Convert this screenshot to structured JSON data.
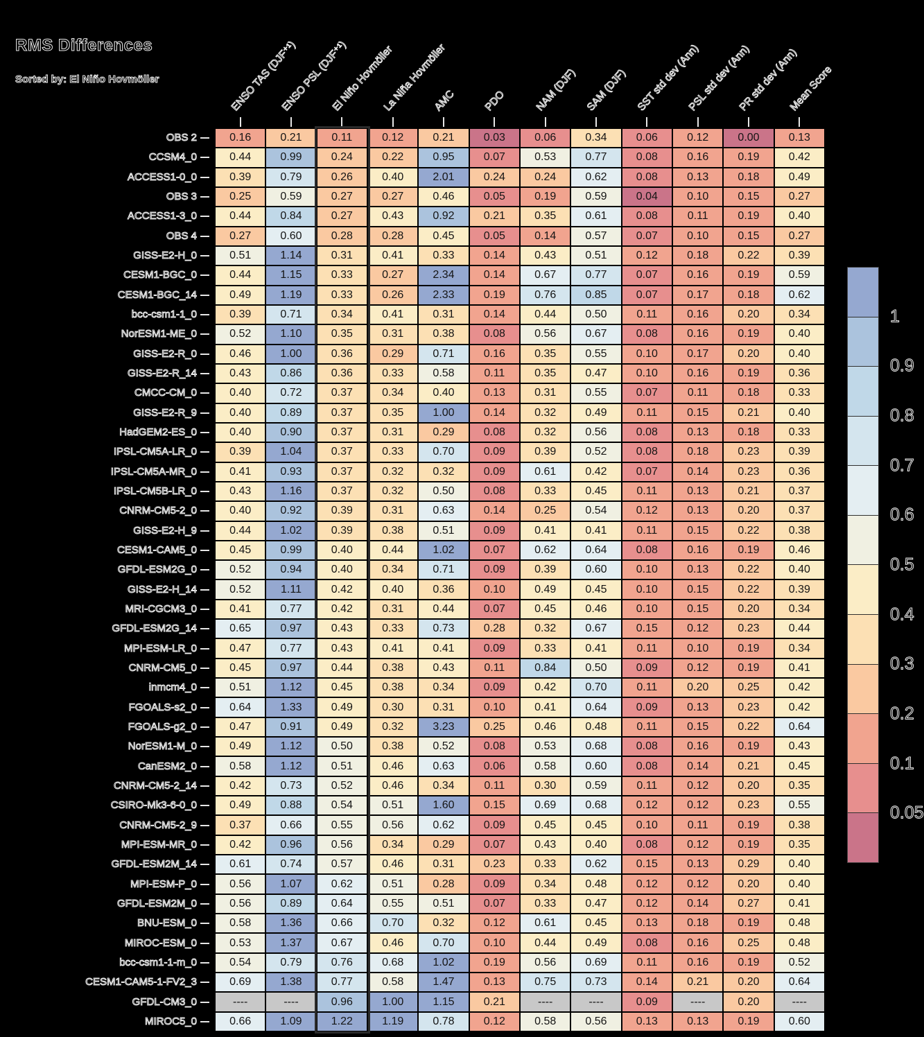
{
  "title": "RMS Differences",
  "subtitle": "Sorted by: El Niño Hovmöller",
  "chart_data": {
    "type": "heatmap",
    "title": "RMS Differences",
    "sorted_by": "El Niño Hovmöller",
    "highlighted_column_index": 2,
    "missing_token": "----",
    "columns": [
      "ENSO TAS (DJF⁺¹)",
      "ENSO PSL (DJF⁺¹)",
      "El Niño Hovmöller",
      "La Niña Hovmöller",
      "AMC",
      "PDO",
      "NAM (DJF)",
      "SAM (DJF)",
      "SST std dev (Ann)",
      "PSL std dev (Ann)",
      "PR std dev (Ann)",
      "Mean Score"
    ],
    "rows": [
      "OBS 2",
      "CCSM4_0",
      "ACCESS1-0_0",
      "OBS 3",
      "ACCESS1-3_0",
      "OBS 4",
      "GISS-E2-H_0",
      "CESM1-BGC_0",
      "CESM1-BGC_14",
      "bcc-csm1-1_0",
      "NorESM1-ME_0",
      "GISS-E2-R_0",
      "GISS-E2-R_14",
      "CMCC-CM_0",
      "GISS-E2-R_9",
      "HadGEM2-ES_0",
      "IPSL-CM5A-LR_0",
      "IPSL-CM5A-MR_0",
      "IPSL-CM5B-LR_0",
      "CNRM-CM5-2_0",
      "GISS-E2-H_9",
      "CESM1-CAM5_0",
      "GFDL-ESM2G_0",
      "GISS-E2-H_14",
      "MRI-CGCM3_0",
      "GFDL-ESM2G_14",
      "MPI-ESM-LR_0",
      "CNRM-CM5_0",
      "inmcm4_0",
      "FGOALS-s2_0",
      "FGOALS-g2_0",
      "NorESM1-M_0",
      "CanESM2_0",
      "CNRM-CM5-2_14",
      "CSIRO-Mk3-6-0_0",
      "CNRM-CM5-2_9",
      "MPI-ESM-MR_0",
      "GFDL-ESM2M_14",
      "MPI-ESM-P_0",
      "GFDL-ESM2M_0",
      "BNU-ESM_0",
      "MIROC-ESM_0",
      "bcc-csm1-1-m_0",
      "CESM1-CAM5-1-FV2_3",
      "GFDL-CM3_0",
      "MIROC5_0"
    ],
    "values": [
      [
        "0.16",
        "0.21",
        "0.11",
        "0.12",
        "0.21",
        "0.03",
        "0.06",
        "0.34",
        "0.06",
        "0.12",
        "0.00",
        "0.13"
      ],
      [
        "0.44",
        "0.99",
        "0.24",
        "0.22",
        "0.95",
        "0.07",
        "0.53",
        "0.77",
        "0.08",
        "0.16",
        "0.19",
        "0.42"
      ],
      [
        "0.39",
        "0.79",
        "0.26",
        "0.40",
        "2.01",
        "0.24",
        "0.24",
        "0.62",
        "0.08",
        "0.13",
        "0.18",
        "0.49"
      ],
      [
        "0.25",
        "0.59",
        "0.27",
        "0.27",
        "0.46",
        "0.05",
        "0.19",
        "0.59",
        "0.04",
        "0.10",
        "0.15",
        "0.27"
      ],
      [
        "0.44",
        "0.84",
        "0.27",
        "0.43",
        "0.92",
        "0.21",
        "0.35",
        "0.61",
        "0.08",
        "0.11",
        "0.19",
        "0.40"
      ],
      [
        "0.27",
        "0.60",
        "0.28",
        "0.28",
        "0.45",
        "0.05",
        "0.14",
        "0.57",
        "0.07",
        "0.10",
        "0.15",
        "0.27"
      ],
      [
        "0.51",
        "1.14",
        "0.31",
        "0.41",
        "0.33",
        "0.14",
        "0.43",
        "0.51",
        "0.12",
        "0.18",
        "0.22",
        "0.39"
      ],
      [
        "0.44",
        "1.15",
        "0.33",
        "0.27",
        "2.34",
        "0.14",
        "0.67",
        "0.77",
        "0.07",
        "0.16",
        "0.19",
        "0.59"
      ],
      [
        "0.49",
        "1.19",
        "0.33",
        "0.26",
        "2.33",
        "0.19",
        "0.76",
        "0.85",
        "0.07",
        "0.17",
        "0.18",
        "0.62"
      ],
      [
        "0.39",
        "0.71",
        "0.34",
        "0.41",
        "0.31",
        "0.14",
        "0.44",
        "0.50",
        "0.11",
        "0.16",
        "0.20",
        "0.34"
      ],
      [
        "0.52",
        "1.10",
        "0.35",
        "0.31",
        "0.38",
        "0.08",
        "0.56",
        "0.67",
        "0.08",
        "0.16",
        "0.19",
        "0.40"
      ],
      [
        "0.46",
        "1.00",
        "0.36",
        "0.29",
        "0.71",
        "0.16",
        "0.35",
        "0.55",
        "0.10",
        "0.17",
        "0.20",
        "0.40"
      ],
      [
        "0.43",
        "0.86",
        "0.36",
        "0.33",
        "0.58",
        "0.11",
        "0.35",
        "0.47",
        "0.10",
        "0.16",
        "0.19",
        "0.36"
      ],
      [
        "0.40",
        "0.72",
        "0.37",
        "0.34",
        "0.40",
        "0.13",
        "0.31",
        "0.55",
        "0.07",
        "0.11",
        "0.18",
        "0.33"
      ],
      [
        "0.40",
        "0.89",
        "0.37",
        "0.35",
        "1.00",
        "0.14",
        "0.32",
        "0.49",
        "0.11",
        "0.15",
        "0.21",
        "0.40"
      ],
      [
        "0.40",
        "0.90",
        "0.37",
        "0.31",
        "0.29",
        "0.08",
        "0.32",
        "0.56",
        "0.08",
        "0.13",
        "0.18",
        "0.33"
      ],
      [
        "0.39",
        "1.04",
        "0.37",
        "0.33",
        "0.70",
        "0.09",
        "0.39",
        "0.52",
        "0.08",
        "0.18",
        "0.23",
        "0.39"
      ],
      [
        "0.41",
        "0.93",
        "0.37",
        "0.32",
        "0.32",
        "0.09",
        "0.61",
        "0.42",
        "0.07",
        "0.14",
        "0.23",
        "0.36"
      ],
      [
        "0.43",
        "1.16",
        "0.37",
        "0.32",
        "0.50",
        "0.08",
        "0.33",
        "0.45",
        "0.11",
        "0.13",
        "0.21",
        "0.37"
      ],
      [
        "0.40",
        "0.92",
        "0.39",
        "0.31",
        "0.63",
        "0.14",
        "0.25",
        "0.54",
        "0.12",
        "0.13",
        "0.20",
        "0.37"
      ],
      [
        "0.44",
        "1.02",
        "0.39",
        "0.38",
        "0.51",
        "0.09",
        "0.41",
        "0.41",
        "0.11",
        "0.15",
        "0.22",
        "0.38"
      ],
      [
        "0.45",
        "0.99",
        "0.40",
        "0.44",
        "1.02",
        "0.07",
        "0.62",
        "0.64",
        "0.08",
        "0.16",
        "0.19",
        "0.46"
      ],
      [
        "0.52",
        "0.94",
        "0.40",
        "0.34",
        "0.71",
        "0.09",
        "0.39",
        "0.60",
        "0.10",
        "0.13",
        "0.22",
        "0.40"
      ],
      [
        "0.52",
        "1.11",
        "0.42",
        "0.40",
        "0.36",
        "0.10",
        "0.49",
        "0.45",
        "0.10",
        "0.15",
        "0.22",
        "0.39"
      ],
      [
        "0.41",
        "0.77",
        "0.42",
        "0.31",
        "0.44",
        "0.07",
        "0.45",
        "0.46",
        "0.10",
        "0.15",
        "0.20",
        "0.34"
      ],
      [
        "0.65",
        "0.97",
        "0.43",
        "0.33",
        "0.73",
        "0.28",
        "0.32",
        "0.67",
        "0.15",
        "0.12",
        "0.23",
        "0.44"
      ],
      [
        "0.47",
        "0.77",
        "0.43",
        "0.41",
        "0.41",
        "0.09",
        "0.33",
        "0.41",
        "0.11",
        "0.10",
        "0.19",
        "0.34"
      ],
      [
        "0.45",
        "0.97",
        "0.44",
        "0.38",
        "0.43",
        "0.11",
        "0.84",
        "0.50",
        "0.09",
        "0.12",
        "0.19",
        "0.41"
      ],
      [
        "0.51",
        "1.12",
        "0.45",
        "0.38",
        "0.34",
        "0.09",
        "0.42",
        "0.70",
        "0.11",
        "0.20",
        "0.25",
        "0.42"
      ],
      [
        "0.64",
        "1.33",
        "0.49",
        "0.30",
        "0.31",
        "0.10",
        "0.41",
        "0.64",
        "0.09",
        "0.13",
        "0.23",
        "0.42"
      ],
      [
        "0.47",
        "0.91",
        "0.49",
        "0.32",
        "3.23",
        "0.25",
        "0.46",
        "0.48",
        "0.11",
        "0.15",
        "0.22",
        "0.64"
      ],
      [
        "0.49",
        "1.12",
        "0.50",
        "0.38",
        "0.52",
        "0.08",
        "0.53",
        "0.68",
        "0.08",
        "0.16",
        "0.19",
        "0.43"
      ],
      [
        "0.58",
        "1.12",
        "0.51",
        "0.46",
        "0.63",
        "0.06",
        "0.58",
        "0.60",
        "0.08",
        "0.14",
        "0.21",
        "0.45"
      ],
      [
        "0.42",
        "0.73",
        "0.52",
        "0.46",
        "0.34",
        "0.11",
        "0.30",
        "0.59",
        "0.11",
        "0.12",
        "0.20",
        "0.35"
      ],
      [
        "0.49",
        "0.88",
        "0.54",
        "0.51",
        "1.60",
        "0.15",
        "0.69",
        "0.68",
        "0.12",
        "0.12",
        "0.23",
        "0.55"
      ],
      [
        "0.37",
        "0.66",
        "0.55",
        "0.56",
        "0.62",
        "0.09",
        "0.45",
        "0.45",
        "0.10",
        "0.11",
        "0.19",
        "0.38"
      ],
      [
        "0.42",
        "0.96",
        "0.56",
        "0.34",
        "0.29",
        "0.07",
        "0.43",
        "0.40",
        "0.08",
        "0.12",
        "0.19",
        "0.35"
      ],
      [
        "0.61",
        "0.74",
        "0.57",
        "0.46",
        "0.31",
        "0.23",
        "0.33",
        "0.62",
        "0.15",
        "0.13",
        "0.29",
        "0.40"
      ],
      [
        "0.56",
        "1.07",
        "0.62",
        "0.51",
        "0.28",
        "0.09",
        "0.34",
        "0.48",
        "0.12",
        "0.12",
        "0.20",
        "0.40"
      ],
      [
        "0.56",
        "0.89",
        "0.64",
        "0.55",
        "0.51",
        "0.07",
        "0.33",
        "0.47",
        "0.12",
        "0.14",
        "0.27",
        "0.41"
      ],
      [
        "0.58",
        "1.36",
        "0.66",
        "0.70",
        "0.32",
        "0.12",
        "0.61",
        "0.45",
        "0.13",
        "0.18",
        "0.19",
        "0.48"
      ],
      [
        "0.53",
        "1.37",
        "0.67",
        "0.46",
        "0.70",
        "0.10",
        "0.44",
        "0.49",
        "0.08",
        "0.16",
        "0.25",
        "0.48"
      ],
      [
        "0.54",
        "0.79",
        "0.76",
        "0.68",
        "1.02",
        "0.19",
        "0.56",
        "0.69",
        "0.11",
        "0.16",
        "0.19",
        "0.52"
      ],
      [
        "0.69",
        "1.38",
        "0.77",
        "0.58",
        "1.47",
        "0.13",
        "0.75",
        "0.73",
        "0.14",
        "0.21",
        "0.20",
        "0.64"
      ],
      [
        "----",
        "----",
        "0.96",
        "1.00",
        "1.15",
        "0.21",
        "----",
        "----",
        "0.09",
        "----",
        "0.20",
        "----"
      ],
      [
        "0.66",
        "1.09",
        "1.22",
        "1.19",
        "0.78",
        "0.12",
        "0.58",
        "0.56",
        "0.13",
        "0.13",
        "0.19",
        "0.60"
      ]
    ],
    "colorbar": {
      "tick_labels": [
        "1",
        "0.9",
        "0.8",
        "0.7",
        "0.6",
        "0.5",
        "0.4",
        "0.3",
        "0.2",
        "0.1",
        "0.05"
      ],
      "bin_edges": [
        0.05,
        0.1,
        0.2,
        0.3,
        0.4,
        0.5,
        0.6,
        0.7,
        0.8,
        0.9,
        1.0
      ],
      "colors_low_to_high": [
        "#ca7489",
        "#e78f8e",
        "#f1a48f",
        "#fac9a1",
        "#fce0b4",
        "#fbedc6",
        "#f0f0e2",
        "#e4eef2",
        "#d4e5ee",
        "#c0d8e8",
        "#abc3dd",
        "#95a8d0"
      ],
      "missing_color": "#c8c8c8"
    }
  }
}
